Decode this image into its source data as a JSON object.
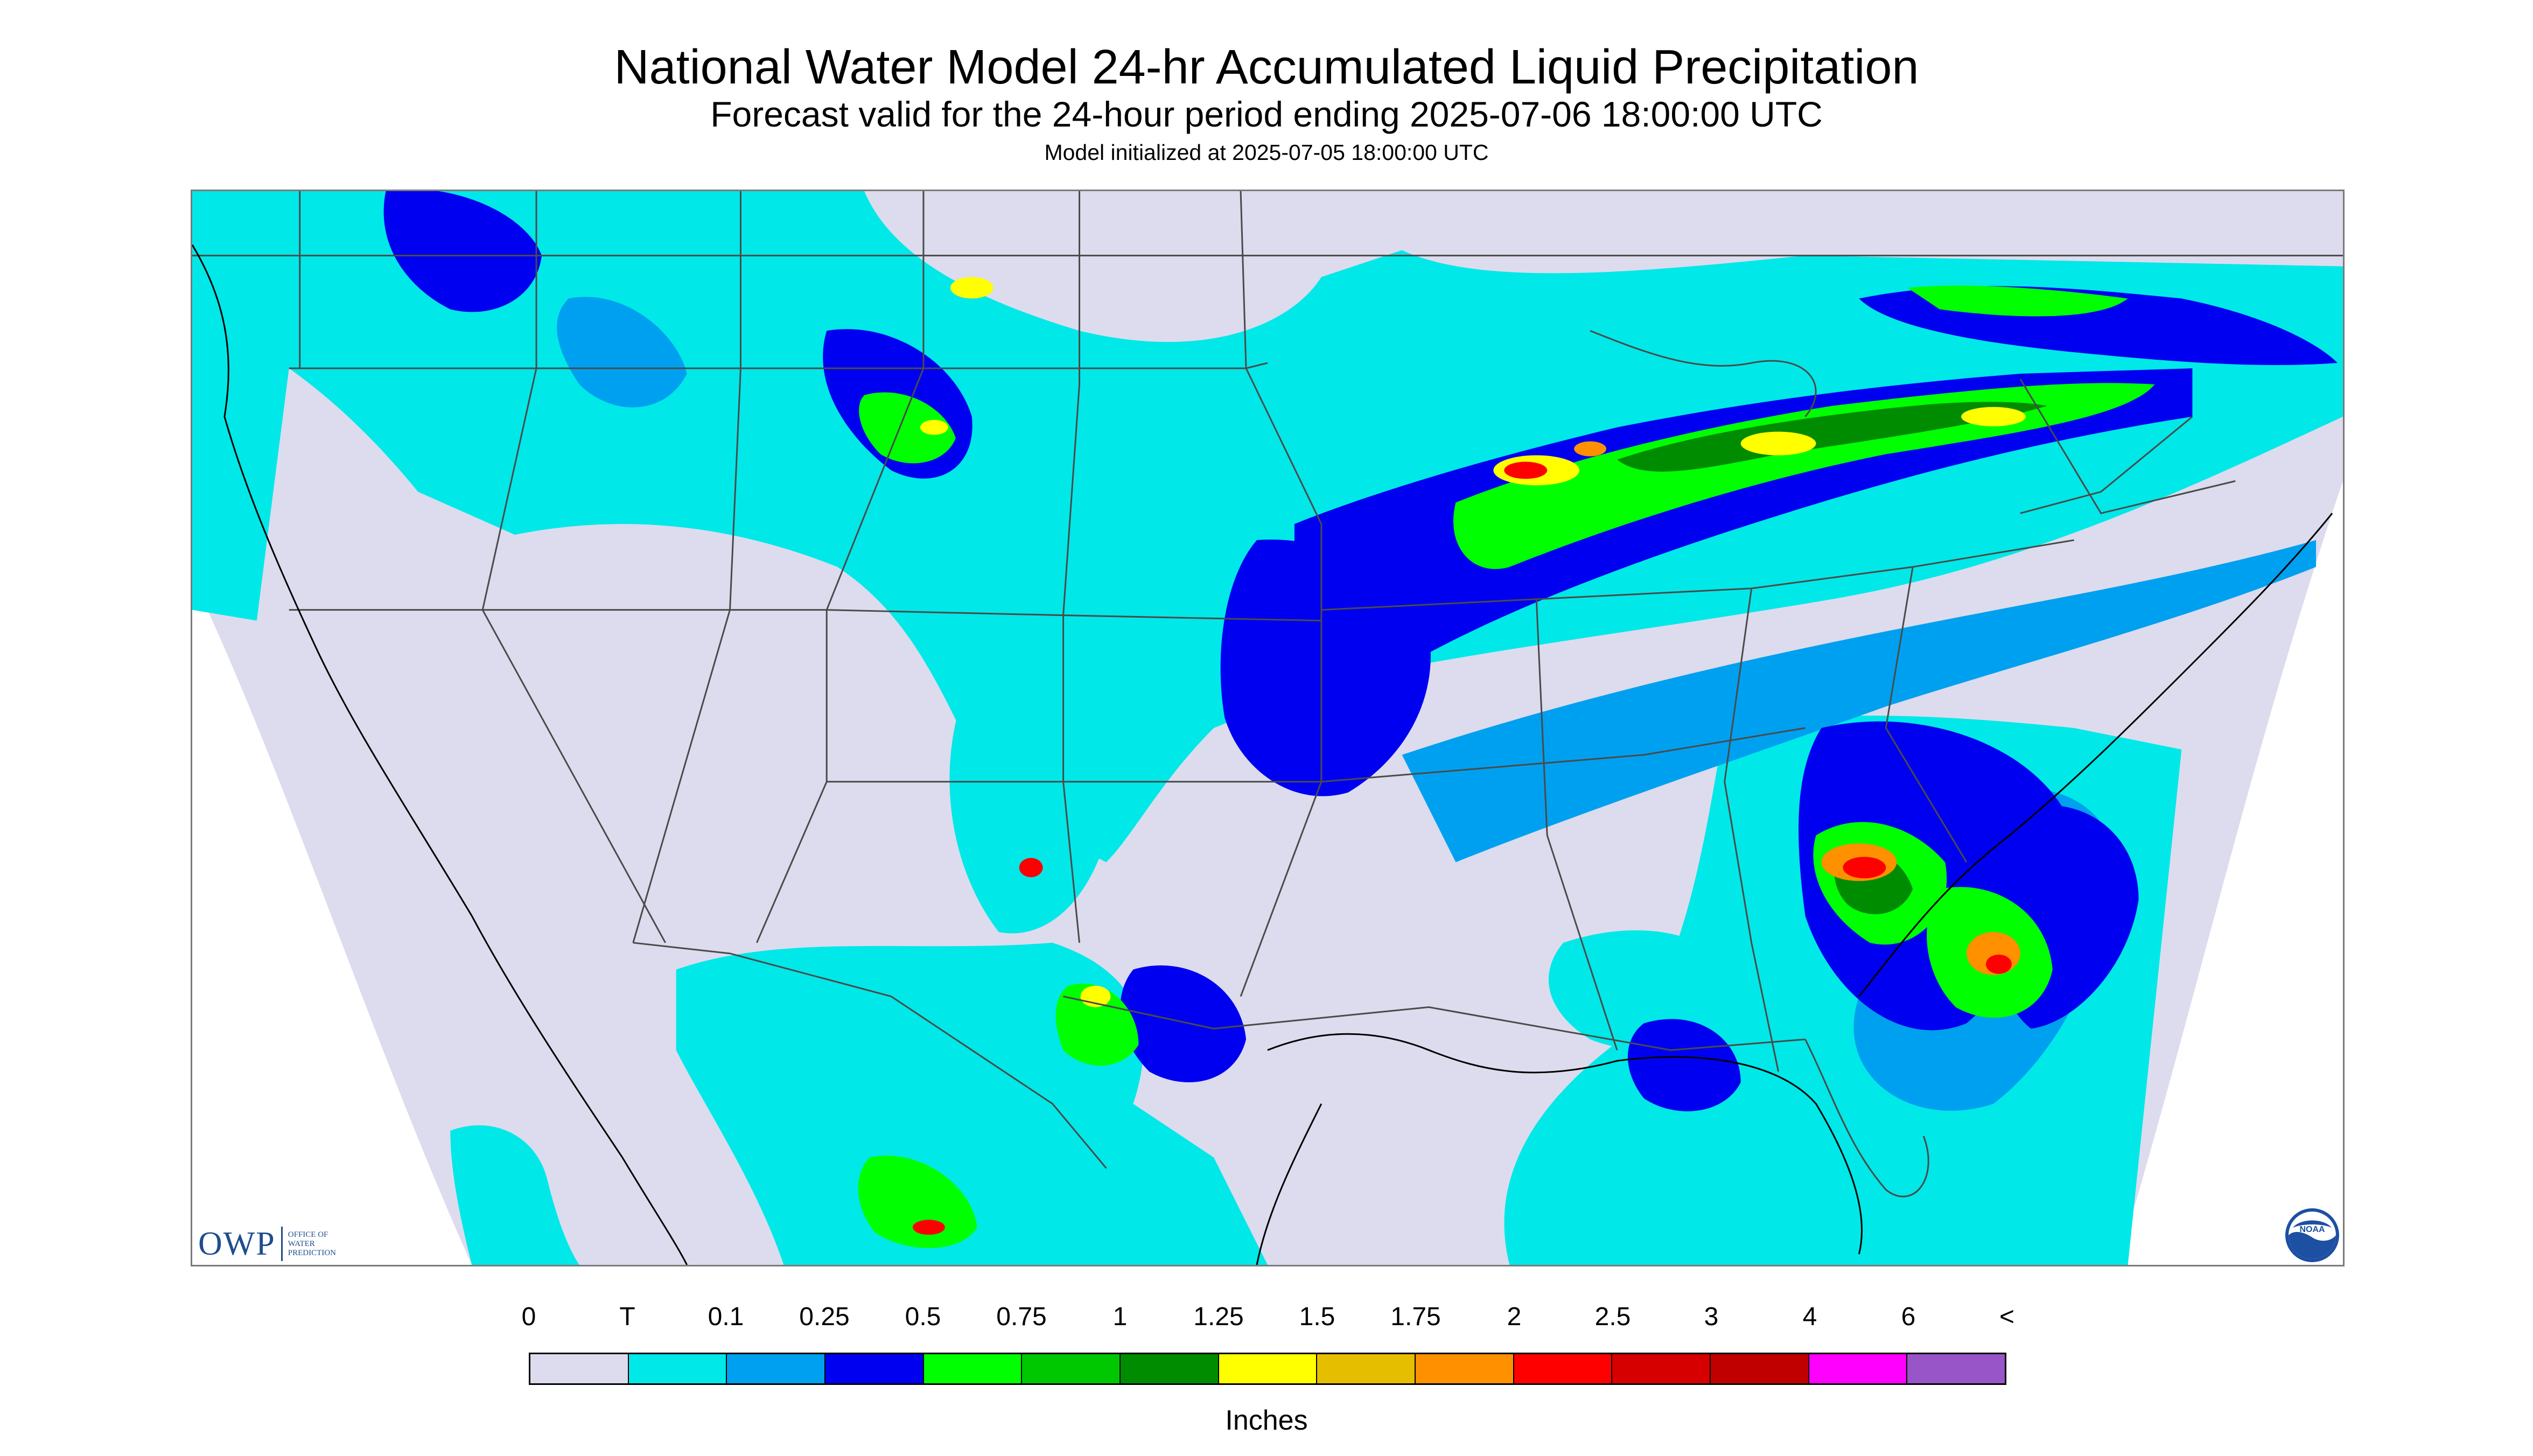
{
  "header": {
    "title": "National Water Model 24-hr Accumulated Liquid Precipitation",
    "subtitle": "Forecast valid for the 24-hour period ending 2025-07-06 18:00:00 UTC",
    "init": "Model initialized at 2025-07-05 18:00:00 UTC"
  },
  "logos": {
    "owp_text": "OWP",
    "owp_office": [
      "OFFICE OF",
      "WATER",
      "PREDICTION"
    ],
    "noaa_text": "NOAA"
  },
  "legend": {
    "labels": [
      "0",
      "T",
      "0.1",
      "0.25",
      "0.5",
      "0.75",
      "1",
      "1.25",
      "1.5",
      "1.75",
      "2",
      "2.5",
      "3",
      "4",
      "6",
      "<"
    ],
    "colors": [
      "#dcdcee",
      "#00e8e8",
      "#00a0f0",
      "#0000f0",
      "#00ff00",
      "#00c800",
      "#008c00",
      "#ffff00",
      "#e6be00",
      "#ff9000",
      "#ff0000",
      "#d60000",
      "#c00000",
      "#ff00ff",
      "#9855c8"
    ],
    "unit": "Inches"
  },
  "map_colors": {
    "no_data": "#ffffff",
    "land_zero": "#dcdcee",
    "border": "#4a4a4a"
  }
}
